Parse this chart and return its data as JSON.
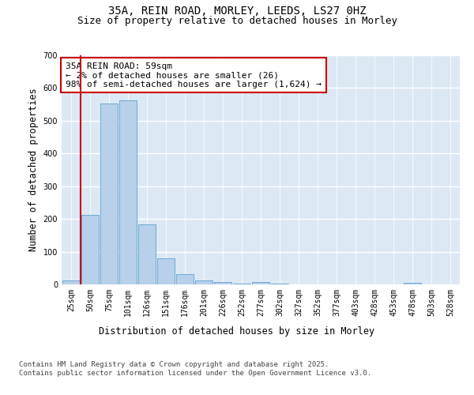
{
  "title_line1": "35A, REIN ROAD, MORLEY, LEEDS, LS27 0HZ",
  "title_line2": "Size of property relative to detached houses in Morley",
  "xlabel": "Distribution of detached houses by size in Morley",
  "ylabel": "Number of detached properties",
  "categories": [
    "25sqm",
    "50sqm",
    "75sqm",
    "101sqm",
    "126sqm",
    "151sqm",
    "176sqm",
    "201sqm",
    "226sqm",
    "252sqm",
    "277sqm",
    "302sqm",
    "327sqm",
    "352sqm",
    "377sqm",
    "403sqm",
    "428sqm",
    "453sqm",
    "478sqm",
    "503sqm",
    "528sqm"
  ],
  "values": [
    12,
    213,
    553,
    562,
    184,
    79,
    32,
    13,
    8,
    2,
    8,
    2,
    0,
    0,
    0,
    0,
    0,
    0,
    5,
    0,
    0
  ],
  "bar_color": "#b8d0ea",
  "bar_edge_color": "#6aaad4",
  "vline_color": "#cc0000",
  "annotation_text": "35A REIN ROAD: 59sqm\n← 2% of detached houses are smaller (26)\n98% of semi-detached houses are larger (1,624) →",
  "annotation_box_color": "#ffffff",
  "annotation_box_edge_color": "#cc0000",
  "ylim": [
    0,
    700
  ],
  "yticks": [
    0,
    100,
    200,
    300,
    400,
    500,
    600,
    700
  ],
  "background_color": "#dde8f5",
  "fig_background_color": "#ffffff",
  "grid_color": "#ffffff",
  "footer_text": "Contains HM Land Registry data © Crown copyright and database right 2025.\nContains public sector information licensed under the Open Government Licence v3.0.",
  "title_fontsize": 10,
  "subtitle_fontsize": 9,
  "axis_label_fontsize": 8.5,
  "tick_fontsize": 7,
  "annotation_fontsize": 8,
  "footer_fontsize": 6.5
}
